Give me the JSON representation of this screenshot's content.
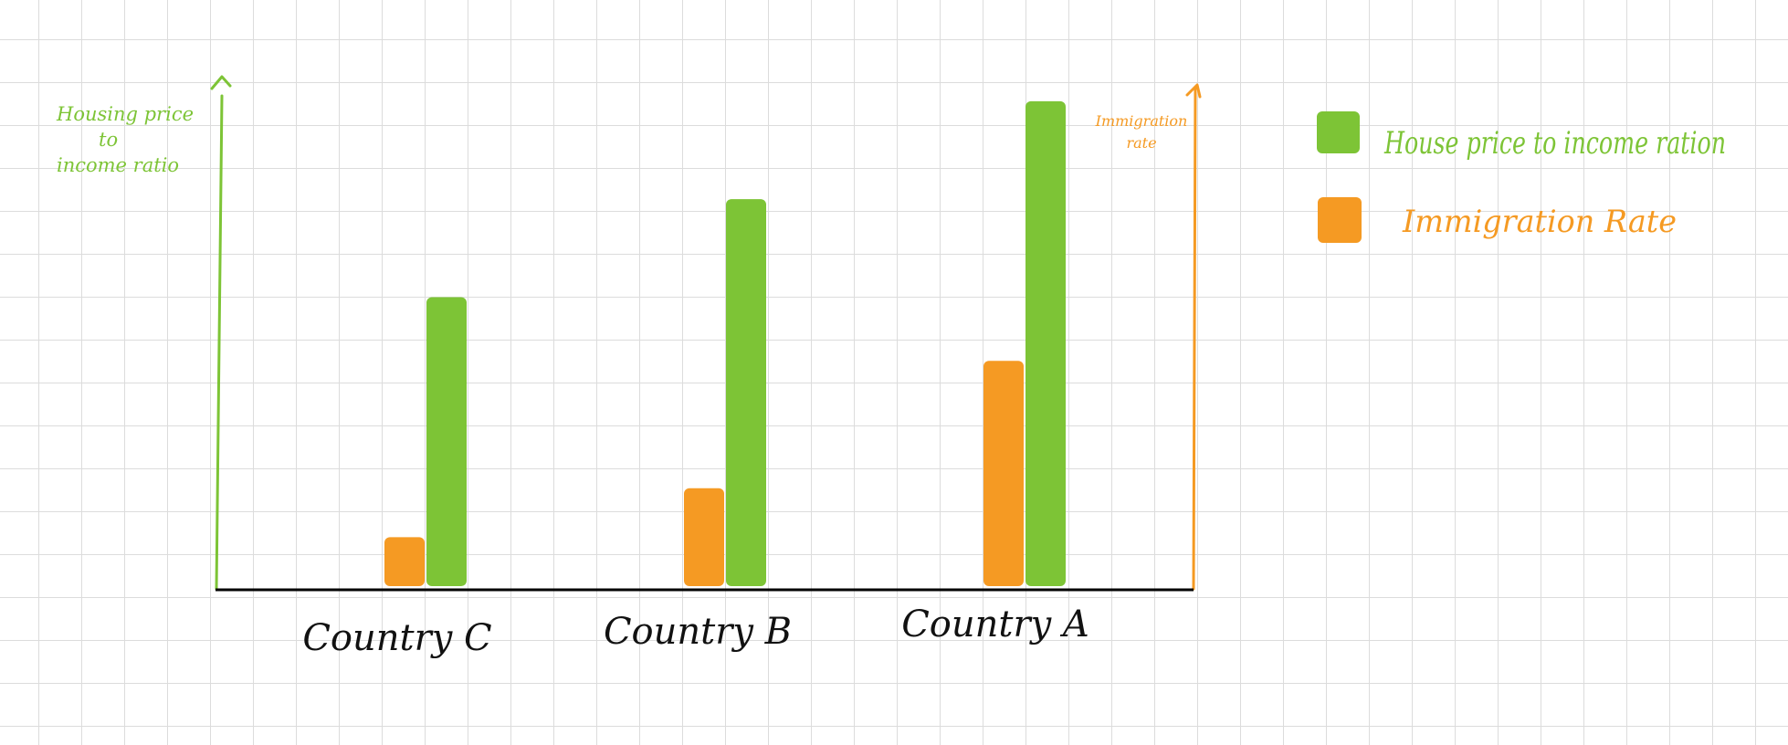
{
  "chart_data": {
    "type": "bar",
    "categories": [
      "Country C",
      "Country B",
      "Country A"
    ],
    "series": [
      {
        "name": "Immigration Rate",
        "values": [
          1,
          2,
          4.6
        ],
        "color": "#f59a23",
        "axis": "right"
      },
      {
        "name": "House price to income ration",
        "values": [
          5.9,
          7.9,
          9.9
        ],
        "color": "#7dc436",
        "axis": "left"
      }
    ],
    "ylabel_left": "Housing price to income ratio",
    "ylabel_right": "Immigration rate",
    "xlabel": "",
    "ylim": [
      0,
      11.5
    ],
    "grid": true,
    "legend_position": "top-right",
    "axis_colors": {
      "left": "#7dc436",
      "right": "#f59a23",
      "baseline": "#000000"
    }
  }
}
